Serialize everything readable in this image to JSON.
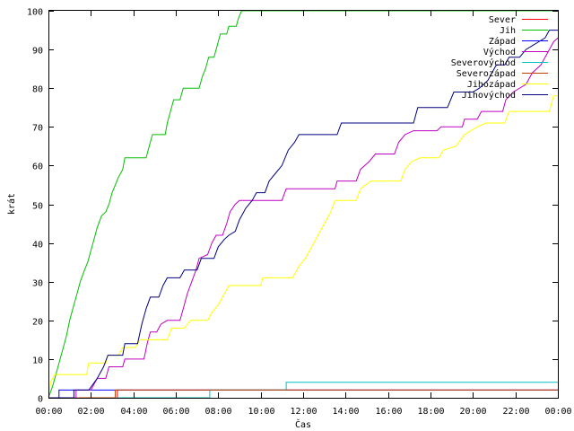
{
  "chart_data": {
    "type": "line",
    "xlabel": "Čas",
    "ylabel": "krát",
    "x_ticks": [
      "00:00",
      "02:00",
      "04:00",
      "06:00",
      "08:00",
      "10:00",
      "12:00",
      "14:00",
      "16:00",
      "18:00",
      "20:00",
      "22:00",
      "00:00"
    ],
    "y_ticks": [
      "0",
      "10",
      "20",
      "30",
      "40",
      "50",
      "60",
      "70",
      "80",
      "90",
      "100"
    ],
    "xlim_hours": [
      0,
      24
    ],
    "ylim": [
      0,
      100
    ],
    "grid": false,
    "legend_position": "top-right",
    "series": [
      {
        "name": "Sever",
        "color": "#ff0000",
        "points": [
          [
            0,
            0
          ],
          [
            3.25,
            0
          ],
          [
            3.25,
            2
          ],
          [
            24,
            2
          ]
        ]
      },
      {
        "name": "Jih",
        "color": "#00c000",
        "points": [
          [
            0,
            0
          ],
          [
            0.2,
            3
          ],
          [
            0.35,
            6
          ],
          [
            0.5,
            9
          ],
          [
            0.7,
            13
          ],
          [
            0.85,
            16
          ],
          [
            1,
            20
          ],
          [
            1.15,
            23
          ],
          [
            1.35,
            27
          ],
          [
            1.5,
            30
          ],
          [
            1.7,
            33
          ],
          [
            1.85,
            35
          ],
          [
            2,
            38
          ],
          [
            2.15,
            41
          ],
          [
            2.3,
            44
          ],
          [
            2.5,
            47
          ],
          [
            2.7,
            48
          ],
          [
            2.85,
            50
          ],
          [
            3,
            53
          ],
          [
            3.15,
            55
          ],
          [
            3.3,
            57
          ],
          [
            3.5,
            59
          ],
          [
            3.6,
            62
          ],
          [
            4.6,
            62
          ],
          [
            4.75,
            65
          ],
          [
            4.9,
            68
          ],
          [
            5.5,
            68
          ],
          [
            5.6,
            71
          ],
          [
            5.75,
            74
          ],
          [
            5.9,
            77
          ],
          [
            6.2,
            77
          ],
          [
            6.35,
            80
          ],
          [
            7.1,
            80
          ],
          [
            7.25,
            83
          ],
          [
            7.4,
            85
          ],
          [
            7.55,
            88
          ],
          [
            7.8,
            88
          ],
          [
            7.95,
            91
          ],
          [
            8.1,
            94
          ],
          [
            8.4,
            94
          ],
          [
            8.5,
            96
          ],
          [
            8.85,
            96
          ],
          [
            8.95,
            98
          ],
          [
            9.1,
            100
          ],
          [
            24,
            100
          ]
        ]
      },
      {
        "name": "Západ",
        "color": "#0000ff",
        "points": [
          [
            0,
            0
          ],
          [
            0.5,
            0
          ],
          [
            0.5,
            2
          ],
          [
            24,
            2
          ]
        ]
      },
      {
        "name": "Východ",
        "color": "#c000c0",
        "points": [
          [
            0,
            0
          ],
          [
            1.3,
            0
          ],
          [
            1.3,
            2
          ],
          [
            2,
            2
          ],
          [
            2.3,
            5
          ],
          [
            2.7,
            5
          ],
          [
            2.85,
            8
          ],
          [
            3.5,
            8
          ],
          [
            3.6,
            10
          ],
          [
            4.5,
            10
          ],
          [
            4.65,
            14
          ],
          [
            4.8,
            17
          ],
          [
            5.1,
            17
          ],
          [
            5.3,
            19
          ],
          [
            5.6,
            20
          ],
          [
            6.2,
            20
          ],
          [
            6.35,
            23
          ],
          [
            6.55,
            27
          ],
          [
            6.75,
            30
          ],
          [
            6.95,
            33
          ],
          [
            7.1,
            36
          ],
          [
            7.5,
            37
          ],
          [
            7.7,
            40
          ],
          [
            7.9,
            42
          ],
          [
            8.2,
            42
          ],
          [
            8.4,
            45
          ],
          [
            8.55,
            48
          ],
          [
            8.8,
            50
          ],
          [
            9,
            51
          ],
          [
            11,
            51
          ],
          [
            11.2,
            54
          ],
          [
            13.5,
            54
          ],
          [
            13.6,
            56
          ],
          [
            14.5,
            56
          ],
          [
            14.7,
            59
          ],
          [
            15.1,
            61
          ],
          [
            15.4,
            63
          ],
          [
            16.3,
            63
          ],
          [
            16.5,
            66
          ],
          [
            16.8,
            68
          ],
          [
            17.2,
            69
          ],
          [
            18.3,
            69
          ],
          [
            18.5,
            70
          ],
          [
            19.5,
            70
          ],
          [
            19.6,
            72
          ],
          [
            20.2,
            72
          ],
          [
            20.4,
            74
          ],
          [
            21.4,
            74
          ],
          [
            21.55,
            77
          ],
          [
            21.9,
            79
          ],
          [
            22.5,
            81
          ],
          [
            22.8,
            84
          ],
          [
            23.2,
            86
          ],
          [
            23.5,
            89
          ],
          [
            23.8,
            92
          ],
          [
            24,
            93
          ]
        ]
      },
      {
        "name": "Severovýchod",
        "color": "#00c0c0",
        "points": [
          [
            0,
            0
          ],
          [
            7.6,
            0
          ],
          [
            7.6,
            2
          ],
          [
            11.2,
            2
          ],
          [
            11.2,
            4
          ],
          [
            24,
            4
          ]
        ]
      },
      {
        "name": "Severozápad",
        "color": "#c04000",
        "points": [
          [
            0,
            0
          ],
          [
            3.15,
            0
          ],
          [
            3.15,
            2
          ],
          [
            24,
            2
          ]
        ]
      },
      {
        "name": "Jihozápad",
        "color": "#ffff00",
        "points": [
          [
            0,
            0
          ],
          [
            0.1,
            4
          ],
          [
            0.3,
            6
          ],
          [
            1.8,
            6
          ],
          [
            1.9,
            9
          ],
          [
            2.7,
            9
          ],
          [
            2.8,
            11
          ],
          [
            3.3,
            11
          ],
          [
            3.5,
            13
          ],
          [
            4.1,
            13
          ],
          [
            4.3,
            15
          ],
          [
            5.6,
            15
          ],
          [
            5.8,
            18
          ],
          [
            6.4,
            18
          ],
          [
            6.7,
            20
          ],
          [
            7.5,
            20
          ],
          [
            7.7,
            22
          ],
          [
            8,
            24
          ],
          [
            8.3,
            27
          ],
          [
            8.5,
            29
          ],
          [
            10,
            29
          ],
          [
            10.1,
            31
          ],
          [
            11.5,
            31
          ],
          [
            11.8,
            34
          ],
          [
            12.1,
            36
          ],
          [
            12.4,
            39
          ],
          [
            12.7,
            42
          ],
          [
            13,
            45
          ],
          [
            13.3,
            48
          ],
          [
            13.5,
            51
          ],
          [
            14.5,
            51
          ],
          [
            14.7,
            54
          ],
          [
            15.2,
            56
          ],
          [
            16.6,
            56
          ],
          [
            16.8,
            59
          ],
          [
            17.1,
            61
          ],
          [
            17.5,
            62
          ],
          [
            18.4,
            62
          ],
          [
            18.6,
            64
          ],
          [
            19.2,
            65
          ],
          [
            19.6,
            68
          ],
          [
            20.2,
            70
          ],
          [
            20.6,
            71
          ],
          [
            21.5,
            71
          ],
          [
            21.7,
            74
          ],
          [
            23.6,
            74
          ],
          [
            23.8,
            78
          ],
          [
            24,
            78
          ]
        ]
      },
      {
        "name": "Jihovýchod",
        "color": "#000080",
        "points": [
          [
            0,
            0
          ],
          [
            1.2,
            0
          ],
          [
            1.2,
            2
          ],
          [
            1.9,
            2
          ],
          [
            2.3,
            5
          ],
          [
            2.6,
            8
          ],
          [
            2.8,
            11
          ],
          [
            3.5,
            11
          ],
          [
            3.6,
            14
          ],
          [
            4.2,
            14
          ],
          [
            4.4,
            19
          ],
          [
            4.6,
            23
          ],
          [
            4.8,
            26
          ],
          [
            5.2,
            26
          ],
          [
            5.4,
            29
          ],
          [
            5.6,
            31
          ],
          [
            6.2,
            31
          ],
          [
            6.4,
            33
          ],
          [
            7,
            33
          ],
          [
            7.2,
            36
          ],
          [
            7.8,
            36
          ],
          [
            8,
            39
          ],
          [
            8.3,
            41
          ],
          [
            8.5,
            42
          ],
          [
            8.8,
            43
          ],
          [
            9,
            46
          ],
          [
            9.3,
            49
          ],
          [
            9.6,
            51
          ],
          [
            9.8,
            53
          ],
          [
            10.2,
            53
          ],
          [
            10.4,
            56
          ],
          [
            10.7,
            58
          ],
          [
            11,
            60
          ],
          [
            11.3,
            64
          ],
          [
            11.6,
            66
          ],
          [
            11.8,
            68
          ],
          [
            13.6,
            68
          ],
          [
            13.8,
            71
          ],
          [
            17.2,
            71
          ],
          [
            17.4,
            75
          ],
          [
            18.8,
            75
          ],
          [
            19.1,
            79
          ],
          [
            20,
            79
          ],
          [
            20.3,
            80
          ],
          [
            20.7,
            82
          ],
          [
            20.9,
            84
          ],
          [
            21.1,
            86
          ],
          [
            21.5,
            86
          ],
          [
            21.7,
            88
          ],
          [
            22.2,
            88
          ],
          [
            22.5,
            90
          ],
          [
            22.8,
            91
          ],
          [
            23.1,
            92
          ],
          [
            23.4,
            93
          ],
          [
            23.6,
            95
          ],
          [
            24,
            95
          ]
        ]
      }
    ]
  }
}
